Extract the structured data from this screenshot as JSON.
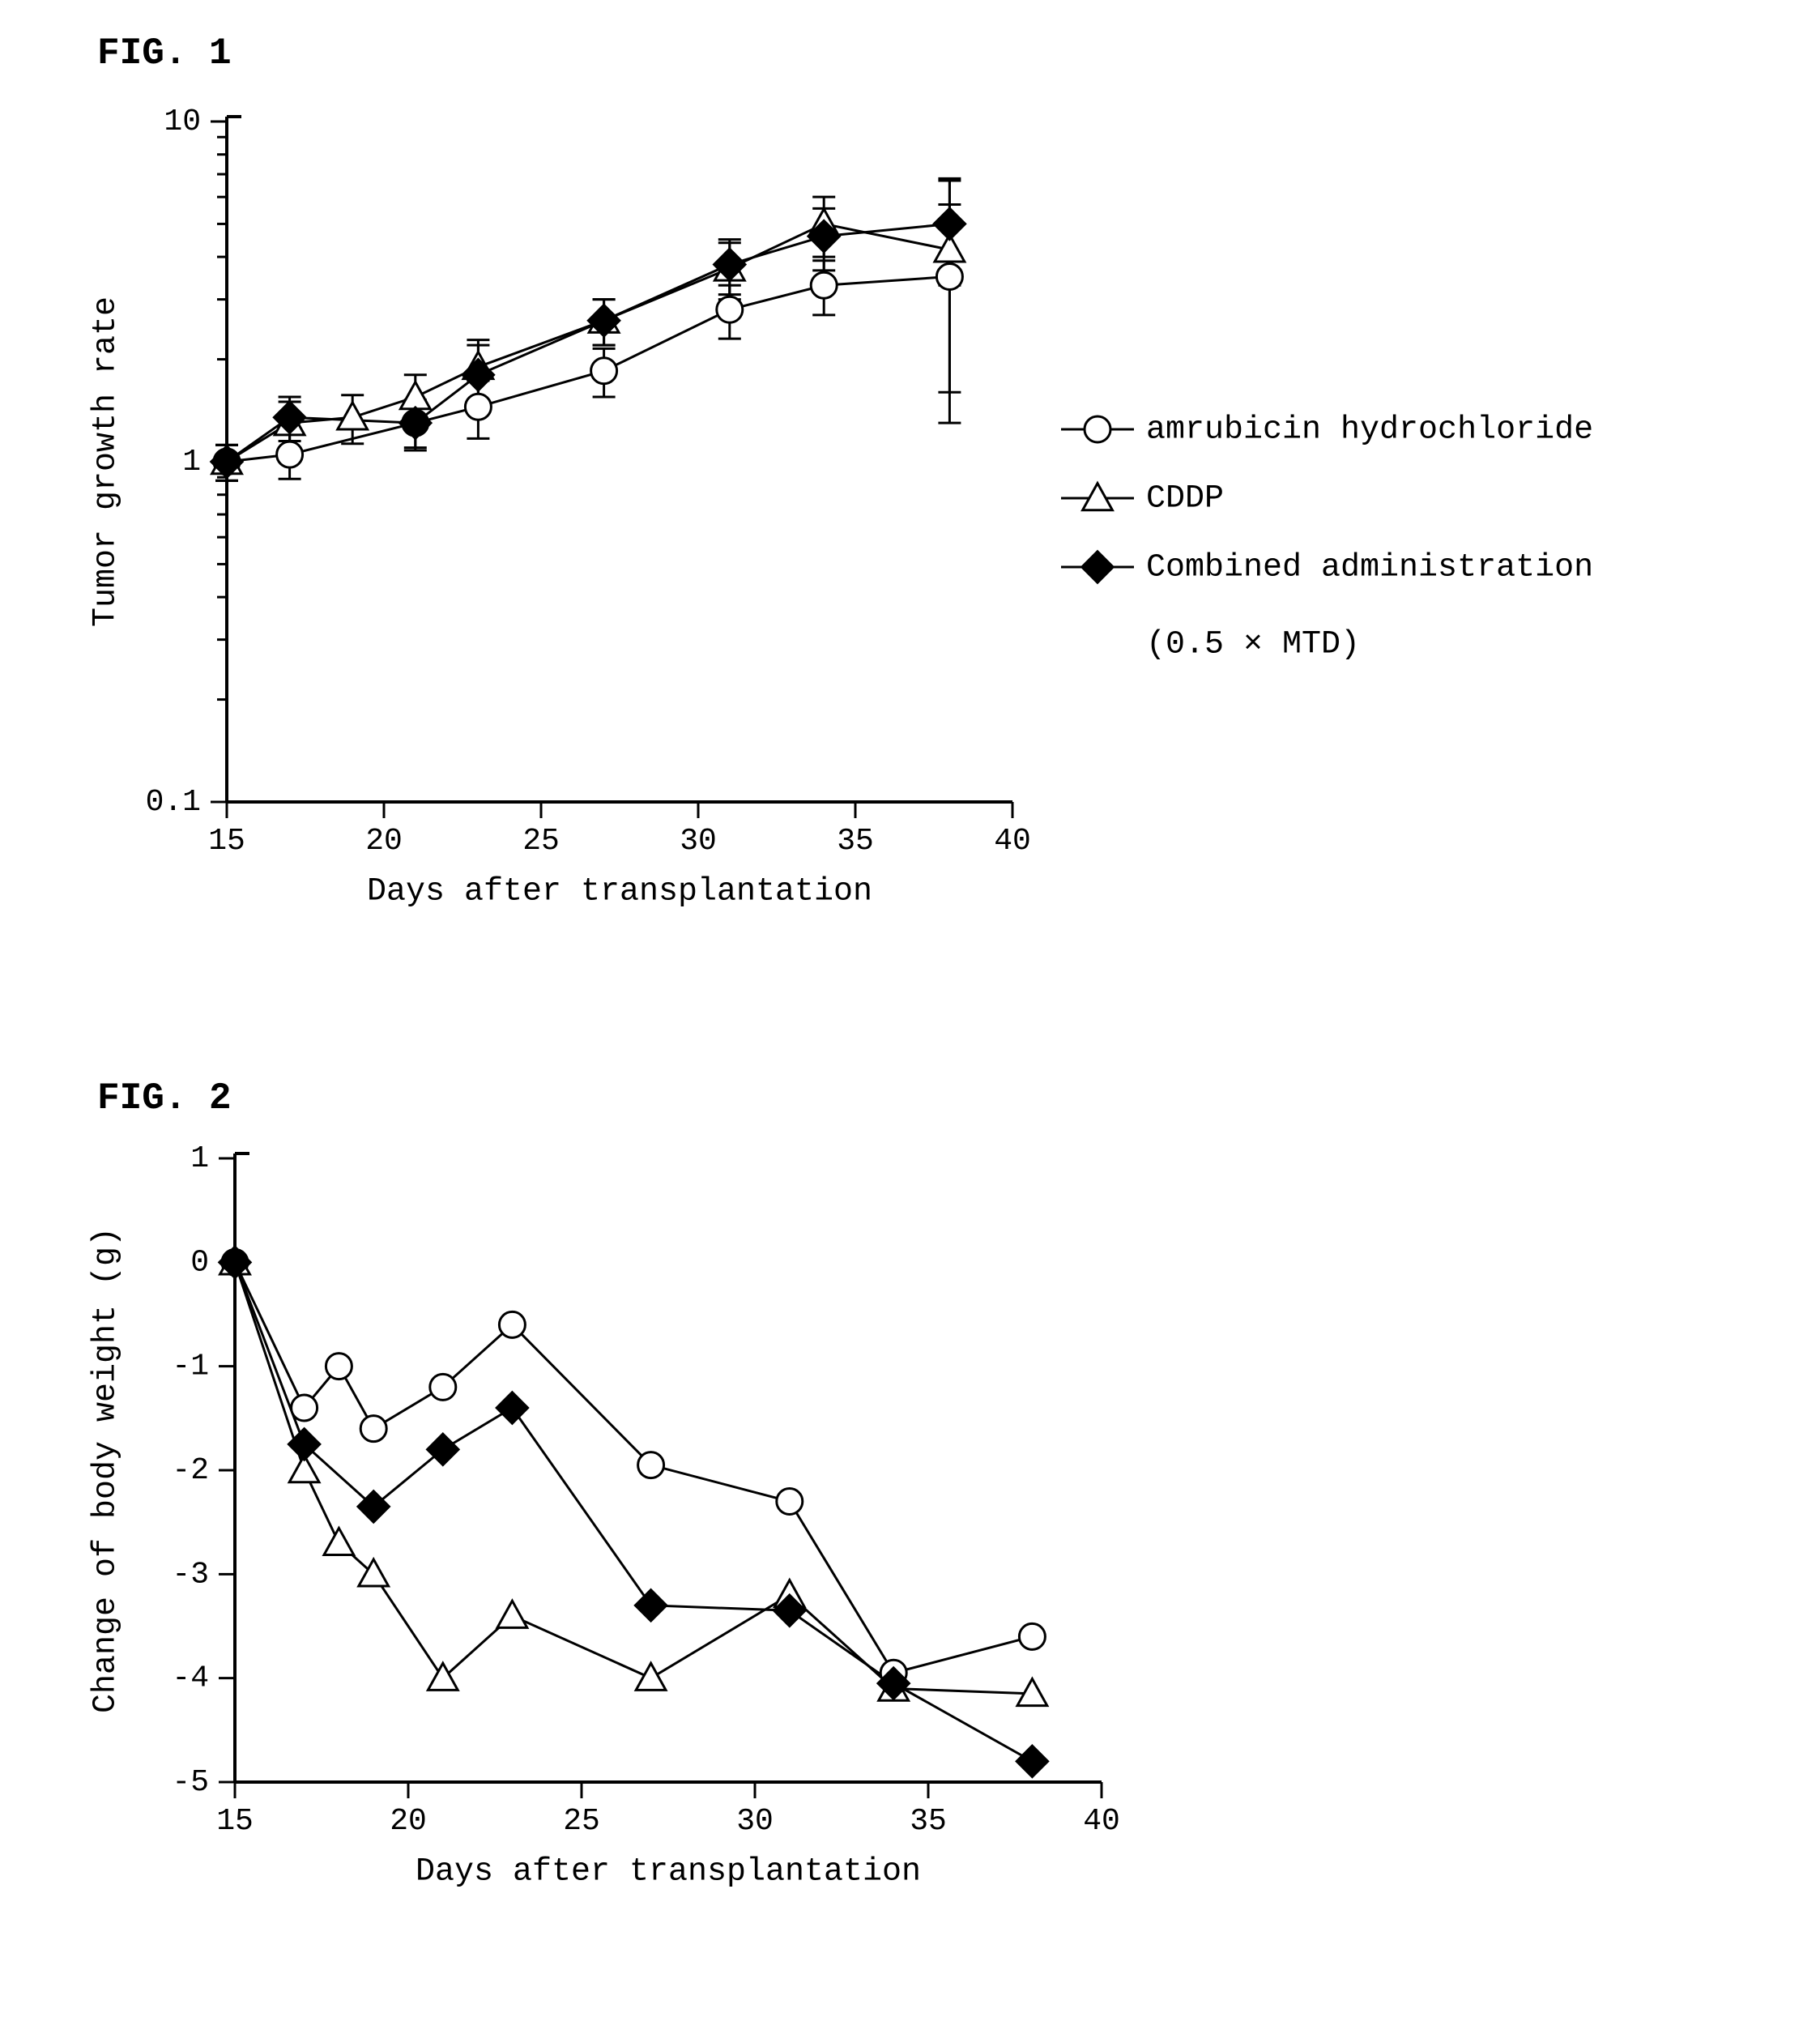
{
  "fig1": {
    "label": "FIG. 1",
    "type": "line",
    "xlabel": "Days after transplantation",
    "ylabel": "Tumor growth rate",
    "xlim": [
      15,
      40
    ],
    "xticks": [
      15,
      20,
      25,
      30,
      35,
      40
    ],
    "xtick_labels": [
      "15",
      "20",
      "25",
      "30",
      "35",
      "40"
    ],
    "yscale": "log",
    "ylim": [
      0.1,
      10
    ],
    "yticks": [
      0.1,
      1,
      10
    ],
    "ytick_labels": [
      "0.1",
      "1",
      "10"
    ],
    "label_fontsize": 40,
    "tick_fontsize": 38,
    "background_color": "#ffffff",
    "axis_color": "#000000",
    "line_color": "#000000",
    "line_width": 3,
    "marker_size": 16,
    "errorbar_width": 3,
    "errorbar_cap": 14,
    "tick_len_major": 20,
    "tick_len_minor": 12,
    "legend": {
      "x_offset_right": 1050,
      "y_offset": 380,
      "entries": [
        {
          "label": "amrubicin hydrochloride",
          "marker": "open-circle"
        },
        {
          "label": "CDDP",
          "marker": "open-triangle"
        },
        {
          "label": "Combined administration",
          "marker": "filled-diamond"
        }
      ],
      "extra_line": "(0.5 × MTD)",
      "fontsize": 40
    },
    "series": [
      {
        "name": "amrubicin hydrochloride",
        "marker": "open-circle",
        "x": [
          15,
          17,
          21,
          23,
          27,
          31,
          34,
          38
        ],
        "y": [
          1.0,
          1.05,
          1.3,
          1.45,
          1.85,
          2.8,
          3.3,
          3.5
        ],
        "yerr": [
          0.12,
          0.16,
          0.22,
          0.28,
          0.3,
          0.5,
          0.6,
          2.2
        ]
      },
      {
        "name": "CDDP",
        "marker": "open-triangle",
        "x": [
          15,
          17,
          19,
          21,
          23,
          27,
          31,
          34,
          38
        ],
        "y": [
          1.0,
          1.3,
          1.35,
          1.55,
          1.9,
          2.6,
          3.7,
          5.0,
          4.2
        ],
        "yerr": [
          0.12,
          0.2,
          0.22,
          0.25,
          0.38,
          0.4,
          0.7,
          1.0,
          2.6
        ]
      },
      {
        "name": "Combined administration",
        "marker": "filled-diamond",
        "x": [
          15,
          17,
          21,
          23,
          27,
          31,
          34,
          38
        ],
        "y": [
          1.0,
          1.35,
          1.3,
          1.8,
          2.6,
          3.8,
          4.6,
          5.0
        ],
        "yerr": [
          0.12,
          0.2,
          0.2,
          0.4,
          0.4,
          0.7,
          0.95,
          1.7
        ]
      }
    ]
  },
  "fig2": {
    "label": "FIG. 2",
    "type": "line",
    "xlabel": "Days after transplantation",
    "ylabel": "Change of body weight (g)",
    "xlim": [
      15,
      40
    ],
    "xticks": [
      15,
      20,
      25,
      30,
      35,
      40
    ],
    "xtick_labels": [
      "15",
      "20",
      "25",
      "30",
      "35",
      "40"
    ],
    "yscale": "linear",
    "ylim": [
      -5,
      1
    ],
    "yticks": [
      -5,
      -4,
      -3,
      -2,
      -1,
      0,
      1
    ],
    "ytick_labels": [
      "-5",
      "-4",
      "-3",
      "-2",
      "-1",
      "0",
      "1"
    ],
    "label_fontsize": 40,
    "tick_fontsize": 38,
    "background_color": "#ffffff",
    "axis_color": "#000000",
    "line_color": "#000000",
    "line_width": 3,
    "marker_size": 16,
    "tick_len_major": 20,
    "series": [
      {
        "name": "amrubicin hydrochloride",
        "marker": "open-circle",
        "x": [
          15,
          17,
          18,
          19,
          21,
          23,
          27,
          31,
          34,
          38
        ],
        "y": [
          0,
          -1.4,
          -1.0,
          -1.6,
          -1.2,
          -0.6,
          -1.95,
          -2.3,
          -3.95,
          -3.6
        ]
      },
      {
        "name": "CDDP",
        "marker": "open-triangle",
        "x": [
          15,
          17,
          18,
          19,
          21,
          23,
          27,
          31,
          34,
          38
        ],
        "y": [
          0,
          -2.0,
          -2.7,
          -3.0,
          -4.0,
          -3.4,
          -4.0,
          -3.2,
          -4.1,
          -4.15
        ]
      },
      {
        "name": "Combined administration",
        "marker": "filled-diamond",
        "x": [
          15,
          17,
          19,
          21,
          23,
          27,
          31,
          34,
          38
        ],
        "y": [
          0,
          -1.75,
          -2.35,
          -1.8,
          -1.4,
          -3.3,
          -3.35,
          -4.05,
          -4.8
        ]
      }
    ]
  }
}
